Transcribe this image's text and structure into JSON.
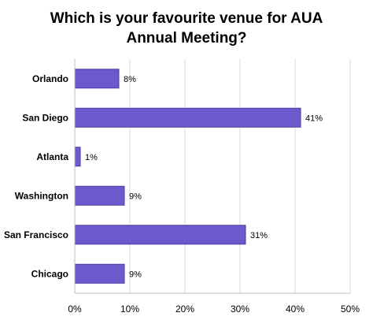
{
  "chart_data": {
    "type": "bar",
    "orientation": "horizontal",
    "title_lines": [
      "Which is your favourite venue for AUA",
      "Annual Meeting?"
    ],
    "categories": [
      "Orlando",
      "San Diego",
      "Atlanta",
      "Washington",
      "San Francisco",
      "Chicago"
    ],
    "values": [
      8,
      41,
      1,
      9,
      31,
      9
    ],
    "data_labels": [
      "8%",
      "41%",
      "1%",
      "9%",
      "31%",
      "9%"
    ],
    "xlim": [
      0,
      50
    ],
    "x_ticks": [
      0,
      10,
      20,
      30,
      40,
      50
    ],
    "x_tick_labels": [
      "0%",
      "10%",
      "20%",
      "30%",
      "40%",
      "50%"
    ],
    "grid": "vertical",
    "legend": "none",
    "bar_color": "#6a5acd",
    "bar_edge_color": "#4b3fa0"
  }
}
